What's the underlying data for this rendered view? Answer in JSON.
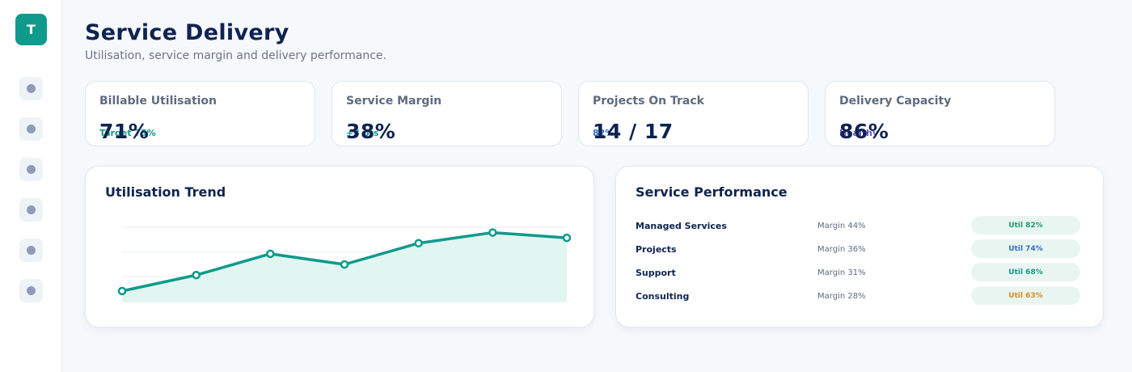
{
  "app": {
    "logo_letter": "T",
    "nav_count": 6
  },
  "header": {
    "title": "Service Delivery",
    "subtitle": "Utilisation, service margin and delivery performance."
  },
  "kpis": [
    {
      "label": "Billable Utilisation",
      "value": "71%",
      "sub": "Target 75%",
      "sub_color": "#0f9a8c"
    },
    {
      "label": "Service Margin",
      "value": "38%",
      "sub": "+3 pts",
      "sub_color": "#0f9a8c"
    },
    {
      "label": "Projects On Track",
      "value": "14 / 17",
      "sub": "82%",
      "sub_color": "#2a6fc9"
    },
    {
      "label": "Delivery Capacity",
      "value": "86%",
      "sub": "Healthy",
      "sub_color": "#6a4fd0"
    }
  ],
  "trend": {
    "title": "Utilisation Trend",
    "chart_data": {
      "type": "area",
      "values": [
        62,
        65,
        69,
        67,
        71,
        73,
        72
      ],
      "ylim": [
        60,
        74
      ],
      "grid": true,
      "color": "#0f9a8c",
      "fill": "#e2f6f1"
    }
  },
  "performance": {
    "title": "Service Performance",
    "rows": [
      {
        "name": "Managed Services",
        "margin": "Margin 44%",
        "util": "Util 82%",
        "util_color": "#1b9d6e"
      },
      {
        "name": "Projects",
        "margin": "Margin 36%",
        "util": "Util 74%",
        "util_color": "#2a6fc9"
      },
      {
        "name": "Support",
        "margin": "Margin 31%",
        "util": "Util 68%",
        "util_color": "#0f9a8c"
      },
      {
        "name": "Consulting",
        "margin": "Margin 28%",
        "util": "Util 63%",
        "util_color": "#e08a1e"
      }
    ]
  }
}
